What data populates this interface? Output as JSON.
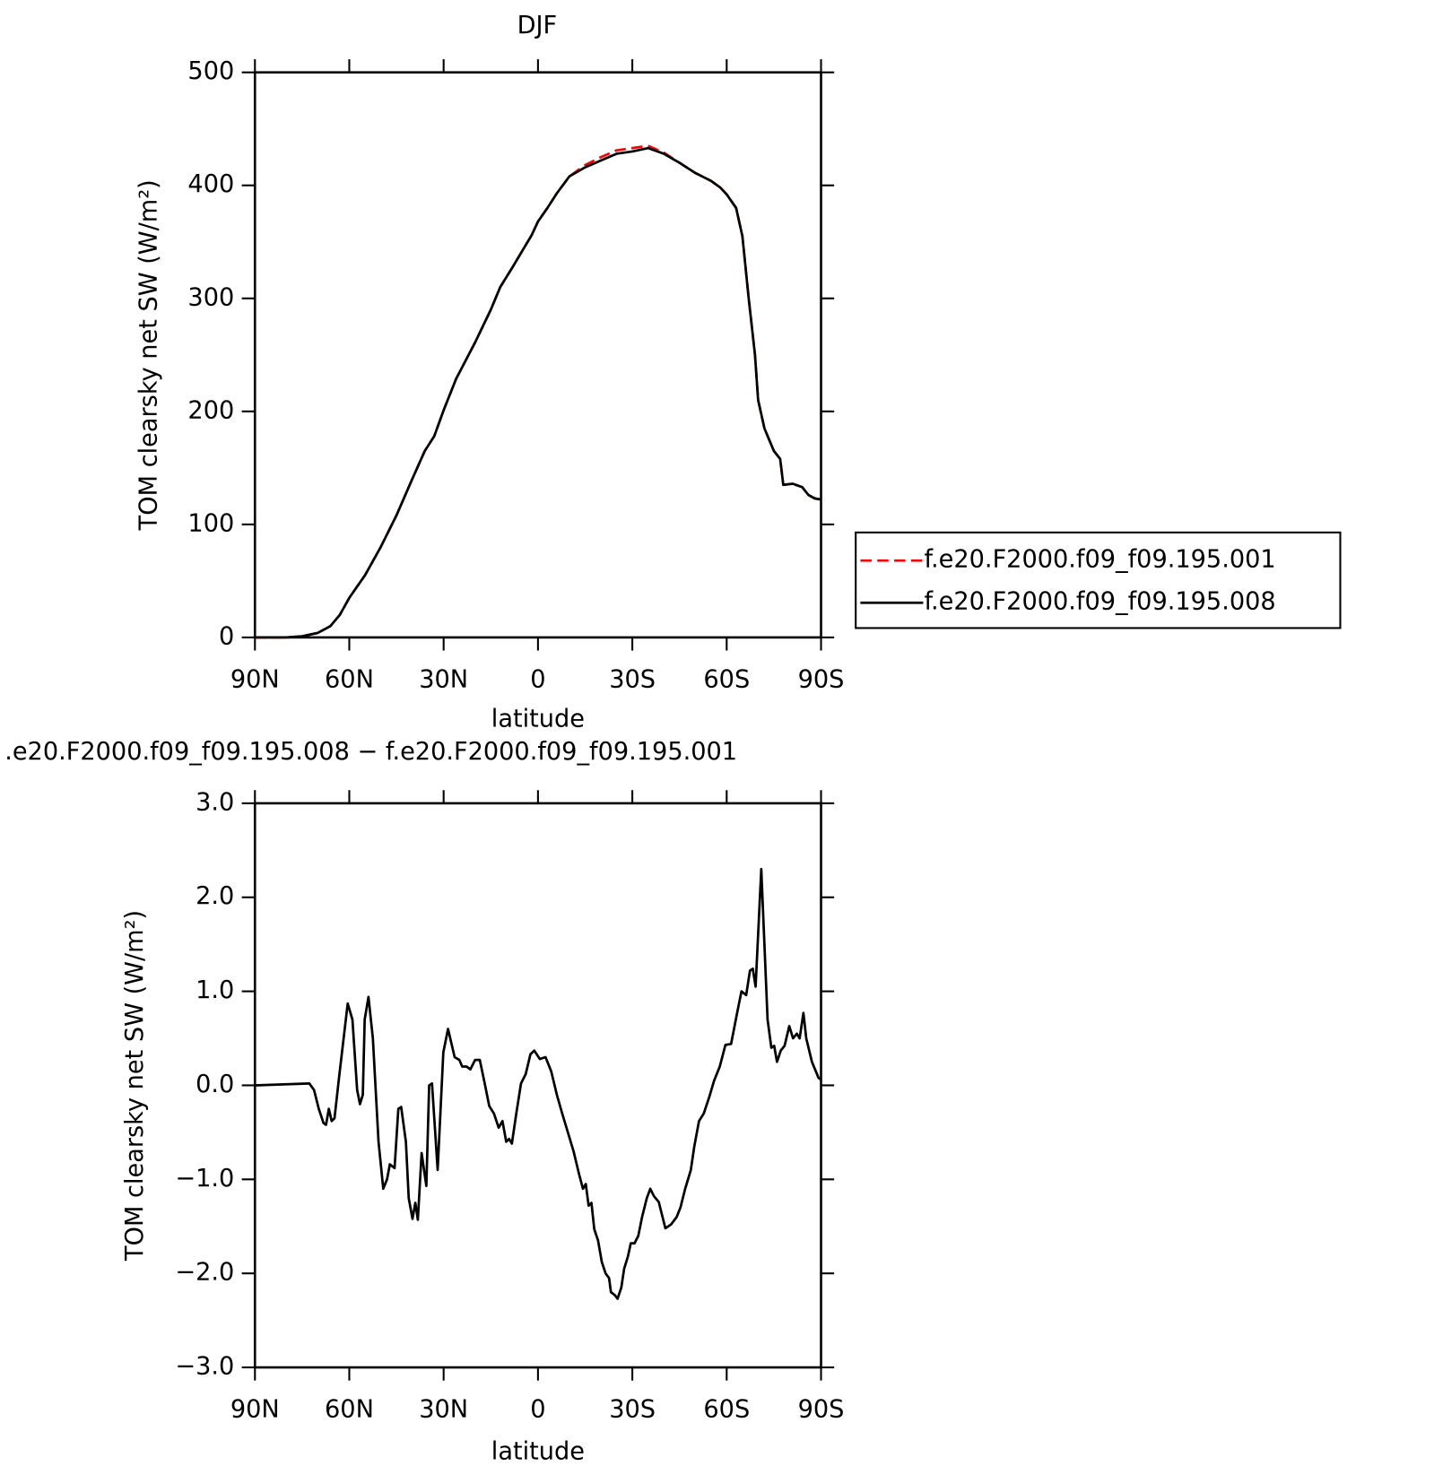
{
  "chart_data": [
    {
      "type": "line",
      "title": "DJF",
      "x_label": "latitude",
      "y_label": "TOM clearsky net SW (W/m²)",
      "xlim": [
        90,
        -90
      ],
      "xticks": [
        {
          "value": 90,
          "label": "90N"
        },
        {
          "value": 60,
          "label": "60N"
        },
        {
          "value": 30,
          "label": "30N"
        },
        0,
        {
          "value": -30,
          "label": "30S"
        },
        {
          "value": -60,
          "label": "60S"
        },
        {
          "value": -90,
          "label": "90S"
        }
      ],
      "ylim": [
        0,
        500
      ],
      "yticks": [
        0,
        100,
        200,
        300,
        400,
        500
      ],
      "legend_position": "right",
      "x": [
        90,
        80,
        75,
        70,
        66,
        63,
        60,
        55,
        50,
        45,
        40,
        36,
        33,
        30,
        26,
        20,
        15,
        12,
        8,
        5,
        2,
        0,
        -3,
        -6,
        -10,
        -15,
        -20,
        -25,
        -30,
        -35,
        -40,
        -45,
        -50,
        -55,
        -58,
        -60,
        -63,
        -65,
        -67,
        -69,
        -70,
        -72,
        -75,
        -77,
        -78,
        -81,
        -84,
        -86,
        -88,
        -90
      ],
      "series": [
        {
          "name": "f.e20.F2000.f09_f09.195.001",
          "color": "#ff0000",
          "dashed": true,
          "values": [
            0,
            0,
            1,
            4,
            10,
            20,
            35,
            55,
            80,
            108,
            140,
            165,
            178,
            201,
            229,
            261,
            290,
            310,
            328,
            342,
            356,
            368,
            380,
            393,
            408,
            418,
            425,
            431,
            433,
            435,
            429,
            420,
            411,
            404,
            398,
            392,
            380,
            355,
            300,
            250,
            210,
            185,
            165,
            158,
            135,
            136,
            133,
            126,
            123,
            122
          ]
        },
        {
          "name": "f.e20.F2000.f09_f09.195.008",
          "color": "#000000",
          "dashed": false,
          "values": [
            0,
            0,
            1,
            4,
            10,
            20,
            35,
            55,
            80,
            108,
            140,
            165,
            178,
            201,
            229,
            261,
            290,
            310,
            328,
            342,
            356,
            368,
            380,
            393,
            408,
            416,
            422,
            428,
            430,
            433,
            428,
            420,
            411,
            404,
            398,
            392,
            380,
            355,
            300,
            250,
            210,
            185,
            165,
            158,
            135,
            136,
            133,
            126,
            123,
            122
          ]
        }
      ]
    },
    {
      "type": "line",
      "title": ".e20.F2000.f09_f09.195.008 − f.e20.F2000.f09_f09.195.001",
      "x_label": "latitude",
      "y_label": "TOM clearsky net SW (W/m²)",
      "xlim": [
        90,
        -90
      ],
      "xticks": [
        {
          "value": 90,
          "label": "90N"
        },
        {
          "value": 60,
          "label": "60N"
        },
        {
          "value": 30,
          "label": "30N"
        },
        0,
        {
          "value": -30,
          "label": "30S"
        },
        {
          "value": -60,
          "label": "60S"
        },
        {
          "value": -90,
          "label": "90S"
        }
      ],
      "ylim": [
        -3,
        3
      ],
      "yticks": [
        {
          "value": -3,
          "label": "−3.0"
        },
        {
          "value": -2,
          "label": "−2.0"
        },
        {
          "value": -1,
          "label": "−1.0"
        },
        {
          "value": 0,
          "label": "0.0"
        },
        {
          "value": 1,
          "label": "1.0"
        },
        {
          "value": 2,
          "label": "2.0"
        },
        {
          "value": 3,
          "label": "3.0"
        }
      ],
      "x": [
        90,
        72.7,
        71.2,
        69.7,
        68.2,
        67.4,
        66.5,
        65.6,
        64.7,
        63.2,
        60.5,
        59,
        57.5,
        56.6,
        55.7,
        55.1,
        53.9,
        52.5,
        50.7,
        49.2,
        48,
        47.1,
        45.6,
        44.4,
        43.5,
        42,
        41.1,
        39.9,
        39,
        38.2,
        37,
        35.5,
        34.6,
        33.7,
        31.9,
        30.1,
        28.6,
        26.5,
        25,
        24.1,
        22.7,
        21.5,
        20,
        18.5,
        17,
        15.5,
        14,
        12.5,
        11.3,
        10.1,
        9.2,
        8.3,
        6.9,
        5.4,
        3.9,
        2.4,
        1.2,
        -0.6,
        -2.4,
        -4.2,
        -6,
        -7.7,
        -9.5,
        -11.3,
        -13.1,
        -14.3,
        -15.2,
        -16.1,
        -17,
        -17.9,
        -19.1,
        -20.3,
        -21.5,
        -22.6,
        -23.2,
        -24.4,
        -25.3,
        -26.5,
        -27.4,
        -28.6,
        -29.5,
        -30.7,
        -31.9,
        -33.1,
        -34.6,
        -35.7,
        -36.9,
        -38.4,
        -40.5,
        -42.3,
        -44.1,
        -45.3,
        -46.8,
        -48.6,
        -49.7,
        -51.2,
        -52.7,
        -54.5,
        -56,
        -57.8,
        -59.6,
        -61.4,
        -63.2,
        -64.7,
        -66.2,
        -67.4,
        -68.3,
        -69.2,
        -71,
        -73,
        -74.2,
        -75.1,
        -76,
        -77.2,
        -78.4,
        -79.9,
        -81.1,
        -82.3,
        -83.2,
        -84.4,
        -85.3,
        -87.1,
        -89.2,
        -90
      ],
      "series": [
        {
          "color": "#000000",
          "values": [
            0,
            0.02,
            -0.05,
            -0.25,
            -0.4,
            -0.42,
            -0.25,
            -0.38,
            -0.35,
            0.1,
            0.87,
            0.7,
            -0.05,
            -0.2,
            -0.1,
            0.7,
            0.94,
            0.5,
            -0.6,
            -1.1,
            -1.0,
            -0.84,
            -0.88,
            -0.25,
            -0.23,
            -0.6,
            -1.2,
            -1.42,
            -1.25,
            -1.43,
            -0.72,
            -1.07,
            0,
            0.02,
            -0.9,
            0.35,
            0.6,
            0.3,
            0.27,
            0.2,
            0.2,
            0.17,
            0.27,
            0.27,
            0.03,
            -0.22,
            -0.3,
            -0.45,
            -0.38,
            -0.6,
            -0.57,
            -0.62,
            -0.3,
            0.02,
            0.12,
            0.33,
            0.37,
            0.28,
            0.3,
            0.15,
            -0.1,
            -0.3,
            -0.5,
            -0.7,
            -0.95,
            -1.1,
            -1.05,
            -1.28,
            -1.25,
            -1.53,
            -1.65,
            -1.88,
            -2.0,
            -2.05,
            -2.2,
            -2.23,
            -2.27,
            -2.15,
            -1.95,
            -1.82,
            -1.68,
            -1.68,
            -1.6,
            -1.4,
            -1.2,
            -1.1,
            -1.18,
            -1.24,
            -1.52,
            -1.48,
            -1.4,
            -1.3,
            -1.1,
            -0.9,
            -0.65,
            -0.38,
            -0.3,
            -0.12,
            0.05,
            0.2,
            0.43,
            0.44,
            0.75,
            1.0,
            0.96,
            1.22,
            1.24,
            1.05,
            2.3,
            0.7,
            0.4,
            0.42,
            0.25,
            0.37,
            0.42,
            0.63,
            0.5,
            0.55,
            0.5,
            0.77,
            0.5,
            0.25,
            0.08,
            0.06
          ]
        }
      ]
    }
  ]
}
